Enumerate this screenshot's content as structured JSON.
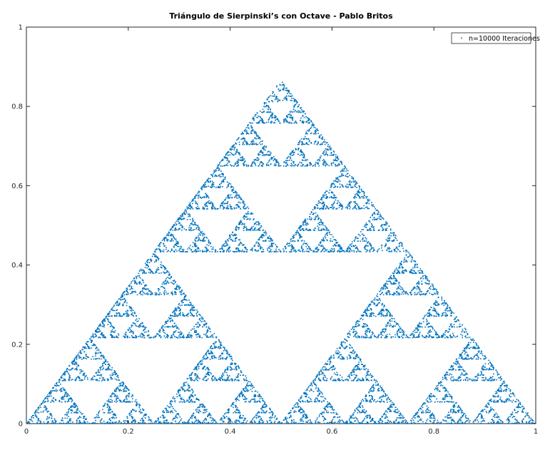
{
  "chart_data": {
    "type": "scatter",
    "title": "Triángulo de Sierpinski’s con Octave - Pablo Britos",
    "xlabel": "",
    "ylabel": "",
    "xlim": [
      0,
      1
    ],
    "ylim": [
      0,
      1
    ],
    "x_ticks": [
      "0",
      "0.2",
      "0.4",
      "0.6",
      "0.8",
      "1"
    ],
    "y_ticks": [
      "0",
      "0.2",
      "0.4",
      "0.6",
      "0.8",
      "1"
    ],
    "grid": false,
    "legend_position": "top-right",
    "marker_color": "#0072bd",
    "series": [
      {
        "name": "n=10000 Iteraciones",
        "iterations": 10000,
        "vertices": [
          [
            0,
            0
          ],
          [
            1,
            0
          ],
          [
            0.5,
            0.866
          ]
        ]
      }
    ]
  }
}
